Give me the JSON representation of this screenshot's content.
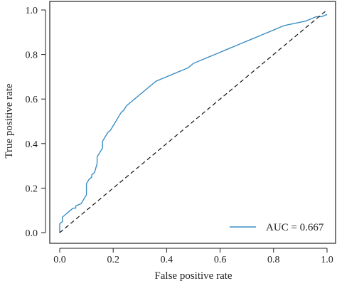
{
  "chart_data": {
    "type": "line",
    "title": "",
    "xlabel": "False positive rate",
    "ylabel": "True positive rate",
    "xlim": [
      0.0,
      1.0
    ],
    "ylim": [
      0.0,
      1.0
    ],
    "x_ticks": [
      "0.0",
      "0.2",
      "0.4",
      "0.6",
      "0.8",
      "1.0"
    ],
    "y_ticks": [
      "0.0",
      "0.2",
      "0.4",
      "0.6",
      "0.8",
      "1.0"
    ],
    "grid": false,
    "legend_position": "bottom-right",
    "series": [
      {
        "name": "AUC = 0.667",
        "color": "#3b8fc4",
        "style": "solid",
        "x": [
          0.0,
          0.0,
          0.01,
          0.01,
          0.02,
          0.03,
          0.04,
          0.05,
          0.06,
          0.06,
          0.08,
          0.09,
          0.1,
          0.1,
          0.11,
          0.12,
          0.12,
          0.13,
          0.14,
          0.14,
          0.15,
          0.16,
          0.16,
          0.17,
          0.18,
          0.19,
          0.2,
          0.21,
          0.22,
          0.23,
          0.24,
          0.25,
          0.26,
          0.28,
          0.3,
          0.31,
          0.33,
          0.34,
          0.36,
          0.38,
          0.4,
          0.42,
          0.44,
          0.46,
          0.48,
          0.5,
          0.52,
          0.54,
          0.56,
          0.58,
          0.6,
          0.62,
          0.64,
          0.66,
          0.68,
          0.7,
          0.72,
          0.74,
          0.76,
          0.78,
          0.8,
          0.82,
          0.84,
          0.86,
          0.88,
          0.9,
          0.92,
          0.94,
          0.96,
          0.98,
          1.0
        ],
        "y": [
          0.0,
          0.04,
          0.05,
          0.07,
          0.08,
          0.09,
          0.1,
          0.11,
          0.11,
          0.12,
          0.13,
          0.15,
          0.17,
          0.22,
          0.24,
          0.25,
          0.26,
          0.27,
          0.31,
          0.34,
          0.36,
          0.38,
          0.41,
          0.43,
          0.45,
          0.46,
          0.48,
          0.5,
          0.52,
          0.54,
          0.55,
          0.57,
          0.58,
          0.6,
          0.62,
          0.63,
          0.65,
          0.66,
          0.68,
          0.69,
          0.7,
          0.71,
          0.72,
          0.73,
          0.74,
          0.76,
          0.77,
          0.78,
          0.79,
          0.8,
          0.81,
          0.82,
          0.83,
          0.84,
          0.85,
          0.86,
          0.87,
          0.88,
          0.89,
          0.9,
          0.91,
          0.92,
          0.93,
          0.935,
          0.94,
          0.945,
          0.95,
          0.96,
          0.97,
          0.97,
          0.98
        ]
      },
      {
        "name": "",
        "color": "#111111",
        "style": "dashed",
        "x": [
          0.0,
          1.0
        ],
        "y": [
          0.0,
          1.0
        ]
      }
    ]
  }
}
